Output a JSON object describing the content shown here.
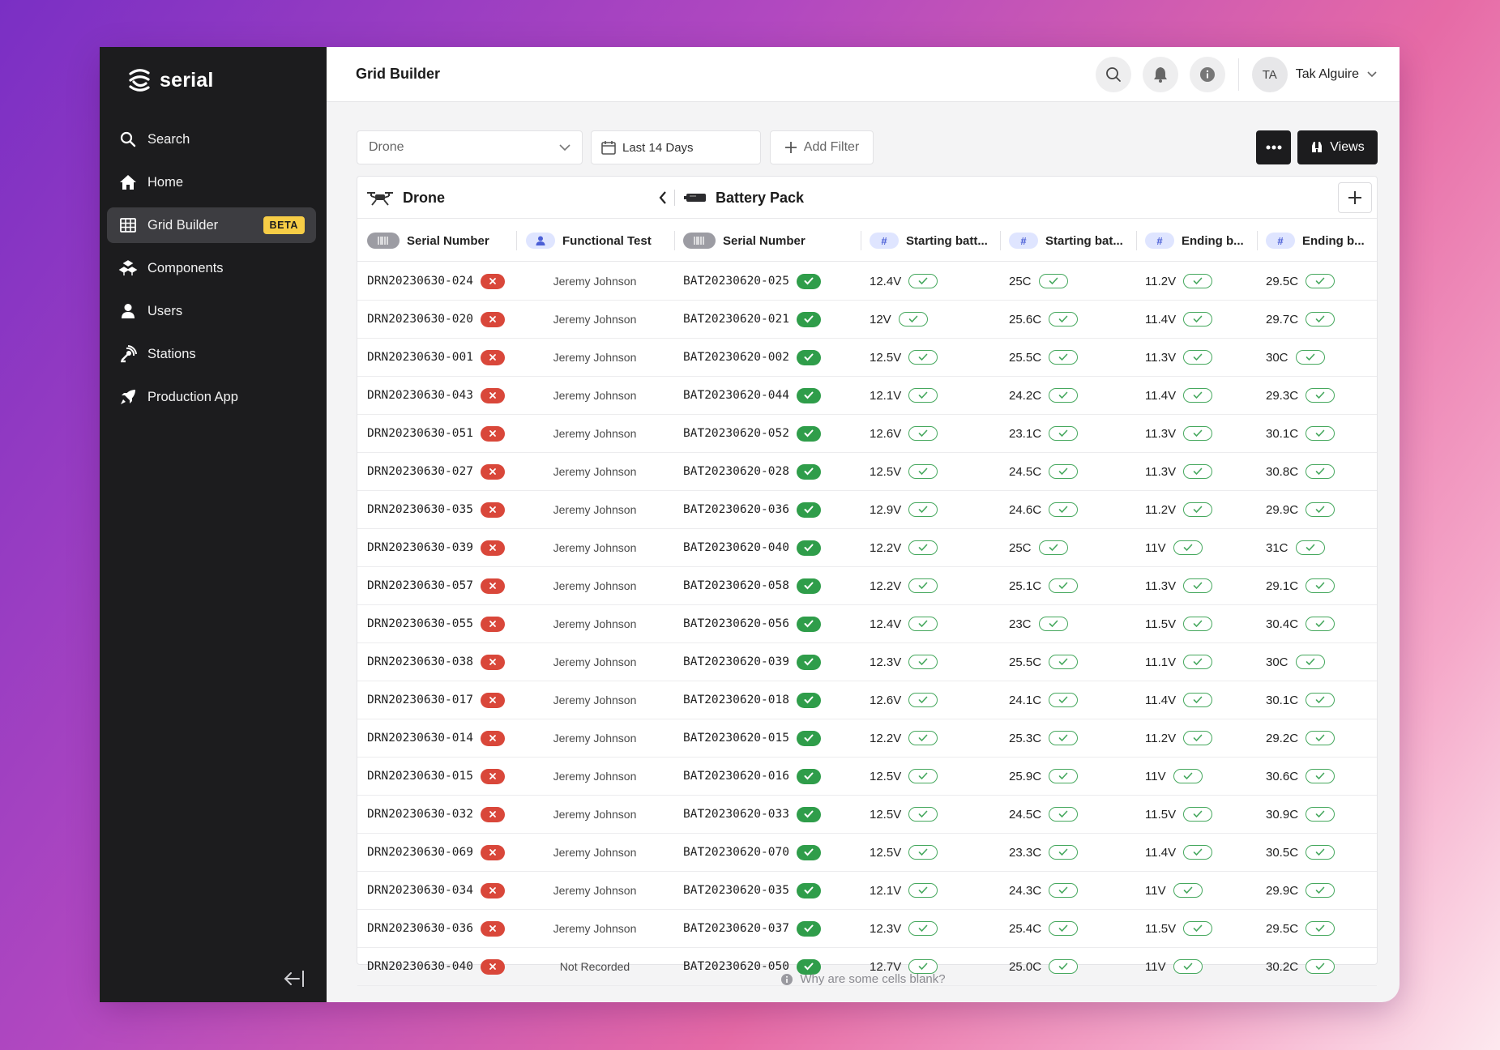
{
  "app": {
    "brand": "serial",
    "page_title": "Grid Builder"
  },
  "sidebar": {
    "items": [
      {
        "label": "Search",
        "icon": "search-icon"
      },
      {
        "label": "Home",
        "icon": "home-icon"
      },
      {
        "label": "Grid Builder",
        "icon": "grid-icon",
        "badge": "BETA",
        "active": true
      },
      {
        "label": "Components",
        "icon": "components-icon"
      },
      {
        "label": "Users",
        "icon": "user-icon"
      },
      {
        "label": "Stations",
        "icon": "stations-icon"
      },
      {
        "label": "Production App",
        "icon": "rocket-icon"
      }
    ]
  },
  "header": {
    "user_initials": "TA",
    "user_name": "Tak Alguire"
  },
  "filters": {
    "component": "Drone",
    "date_range": "Last 14 Days",
    "add_filter": "Add Filter",
    "views": "Views"
  },
  "grid": {
    "groups": {
      "left": "Drone",
      "right": "Battery Pack"
    },
    "columns": [
      "Serial Number",
      "Functional Test",
      "Serial Number",
      "Starting batt...",
      "Starting bat...",
      "Ending b...",
      "Ending b..."
    ],
    "rows": [
      [
        "DRN20230630-024",
        "Jeremy Johnson",
        "BAT20230620-025",
        "12.4V",
        "25C",
        "11.2V",
        "29.5C"
      ],
      [
        "DRN20230630-020",
        "Jeremy Johnson",
        "BAT20230620-021",
        "12V",
        "25.6C",
        "11.4V",
        "29.7C"
      ],
      [
        "DRN20230630-001",
        "Jeremy Johnson",
        "BAT20230620-002",
        "12.5V",
        "25.5C",
        "11.3V",
        "30C"
      ],
      [
        "DRN20230630-043",
        "Jeremy Johnson",
        "BAT20230620-044",
        "12.1V",
        "24.2C",
        "11.4V",
        "29.3C"
      ],
      [
        "DRN20230630-051",
        "Jeremy Johnson",
        "BAT20230620-052",
        "12.6V",
        "23.1C",
        "11.3V",
        "30.1C"
      ],
      [
        "DRN20230630-027",
        "Jeremy Johnson",
        "BAT20230620-028",
        "12.5V",
        "24.5C",
        "11.3V",
        "30.8C"
      ],
      [
        "DRN20230630-035",
        "Jeremy Johnson",
        "BAT20230620-036",
        "12.9V",
        "24.6C",
        "11.2V",
        "29.9C"
      ],
      [
        "DRN20230630-039",
        "Jeremy Johnson",
        "BAT20230620-040",
        "12.2V",
        "25C",
        "11V",
        "31C"
      ],
      [
        "DRN20230630-057",
        "Jeremy Johnson",
        "BAT20230620-058",
        "12.2V",
        "25.1C",
        "11.3V",
        "29.1C"
      ],
      [
        "DRN20230630-055",
        "Jeremy Johnson",
        "BAT20230620-056",
        "12.4V",
        "23C",
        "11.5V",
        "30.4C"
      ],
      [
        "DRN20230630-038",
        "Jeremy Johnson",
        "BAT20230620-039",
        "12.3V",
        "25.5C",
        "11.1V",
        "30C"
      ],
      [
        "DRN20230630-017",
        "Jeremy Johnson",
        "BAT20230620-018",
        "12.6V",
        "24.1C",
        "11.4V",
        "30.1C"
      ],
      [
        "DRN20230630-014",
        "Jeremy Johnson",
        "BAT20230620-015",
        "12.2V",
        "25.3C",
        "11.2V",
        "29.2C"
      ],
      [
        "DRN20230630-015",
        "Jeremy Johnson",
        "BAT20230620-016",
        "12.5V",
        "25.9C",
        "11V",
        "30.6C"
      ],
      [
        "DRN20230630-032",
        "Jeremy Johnson",
        "BAT20230620-033",
        "12.5V",
        "24.5C",
        "11.5V",
        "30.9C"
      ],
      [
        "DRN20230630-069",
        "Jeremy Johnson",
        "BAT20230620-070",
        "12.5V",
        "23.3C",
        "11.4V",
        "30.5C"
      ],
      [
        "DRN20230630-034",
        "Jeremy Johnson",
        "BAT20230620-035",
        "12.1V",
        "24.3C",
        "11V",
        "29.9C"
      ],
      [
        "DRN20230630-036",
        "Jeremy Johnson",
        "BAT20230620-037",
        "12.3V",
        "25.4C",
        "11.5V",
        "29.5C"
      ],
      [
        "DRN20230630-040",
        "Not Recorded",
        "BAT20230620-050",
        "12.7V",
        "25.0C",
        "11V",
        "30.2C"
      ]
    ]
  },
  "footer": {
    "hint": "Why are some cells blank?"
  },
  "colors": {
    "sidebar_bg": "#1c1c1e",
    "beta_badge": "#f7cd46",
    "fail_badge": "#d9473a",
    "pass_badge": "#2f9d4a"
  }
}
